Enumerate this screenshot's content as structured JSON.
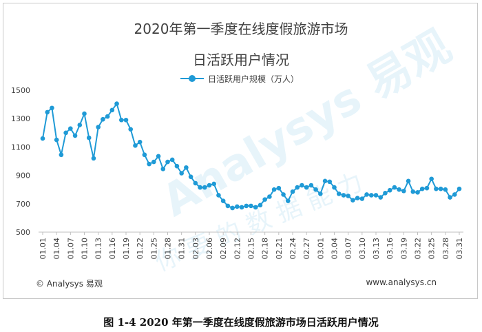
{
  "caption": "图 1-4 2020 年第一季度在线度假旅游市场日活跃用户情况",
  "footer": {
    "left": "© Analysys 易观",
    "right": "www.analysys.cn"
  },
  "watermark": {
    "logo": "Analysys 易观",
    "slogan": "你 要 的 数 据 能 力"
  },
  "colors": {
    "series": "#1f9ad6",
    "axis": "#bfbfbf",
    "text": "#404040"
  },
  "chart_data": {
    "type": "line",
    "title": "2020年第一季度在线度假旅游市场",
    "subtitle": "日活跃用户情况",
    "xlabel": "",
    "ylabel": "",
    "ylim": [
      500,
      1500
    ],
    "yticks": [
      500,
      700,
      900,
      1100,
      1300,
      1500
    ],
    "grid": false,
    "legend_position": "top-center",
    "x_tick_labels": [
      "01.01",
      "01.04",
      "01.07",
      "01.10",
      "01.13",
      "01.16",
      "01.19",
      "01.22",
      "01.25",
      "01.28",
      "01.31",
      "02.03",
      "02.06",
      "02.09",
      "02.12",
      "02.15",
      "02.18",
      "02.21",
      "02.24",
      "02.27",
      "03.01",
      "03.04",
      "03.07",
      "03.10",
      "03.13",
      "03.16",
      "03.19",
      "03.22",
      "03.25",
      "03.28",
      "03.31"
    ],
    "series": [
      {
        "name": "日活跃用户规模（万人）",
        "values": [
          1160,
          1345,
          1375,
          1150,
          1045,
          1200,
          1230,
          1180,
          1255,
          1335,
          1165,
          1020,
          1240,
          1295,
          1315,
          1360,
          1405,
          1290,
          1290,
          1225,
          1110,
          1135,
          1045,
          980,
          995,
          1035,
          945,
          995,
          1010,
          965,
          915,
          955,
          890,
          845,
          815,
          815,
          830,
          840,
          760,
          720,
          685,
          670,
          680,
          675,
          685,
          685,
          675,
          690,
          730,
          750,
          800,
          810,
          765,
          720,
          785,
          815,
          830,
          815,
          830,
          800,
          770,
          860,
          855,
          815,
          770,
          760,
          755,
          725,
          740,
          735,
          765,
          760,
          760,
          745,
          775,
          795,
          815,
          800,
          790,
          860,
          785,
          780,
          805,
          810,
          875,
          805,
          805,
          800,
          745,
          765,
          805
        ]
      }
    ]
  }
}
